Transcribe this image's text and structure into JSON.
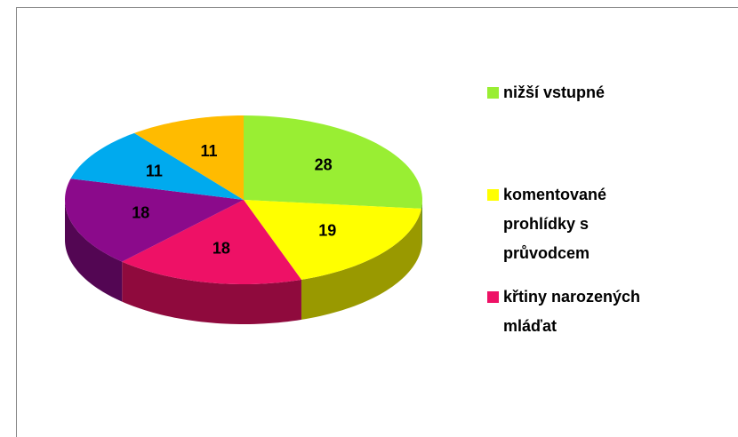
{
  "chart_data": {
    "type": "pie3d",
    "categories": [
      "nižší vstupné",
      "komentované prohlídky s průvodcem",
      "křtiny narozených mláďat",
      null,
      null,
      null
    ],
    "values": [
      28,
      19,
      18,
      18,
      11,
      11
    ],
    "colors": [
      "#99ee33",
      "#ffff00",
      "#ee1166",
      "#8b0a8b",
      "#00aaee",
      "#ffbb00"
    ]
  }
}
